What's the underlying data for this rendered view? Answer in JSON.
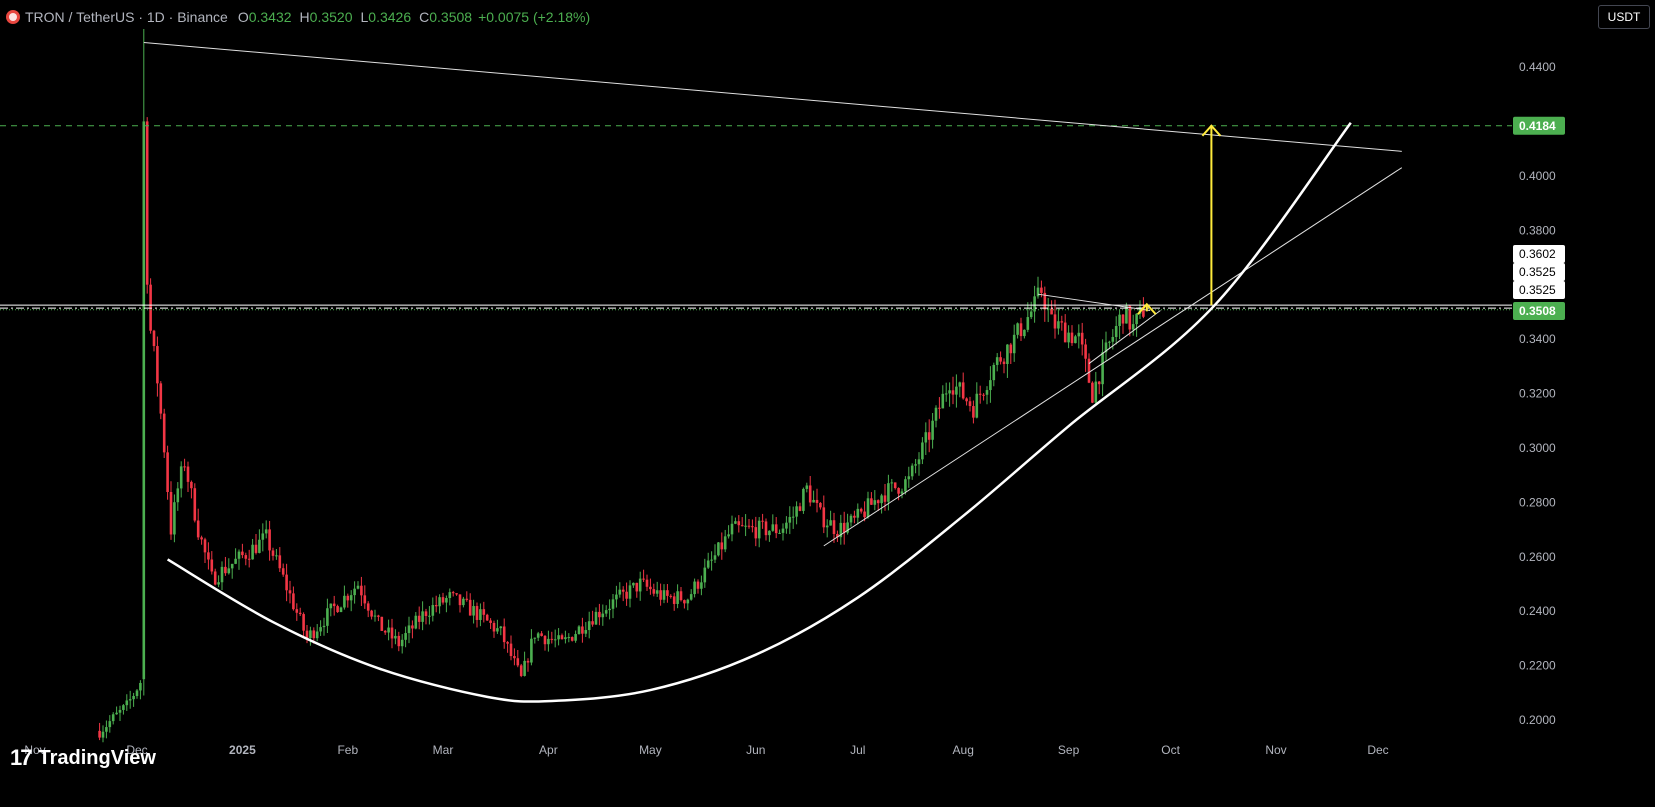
{
  "header": {
    "symbol": "TRON / TetherUS · 1D · Binance",
    "open_label": "O",
    "open": "0.3432",
    "high_label": "H",
    "high": "0.3520",
    "low_label": "L",
    "low": "0.3426",
    "close_label": "C",
    "close": "0.3508",
    "change": "+0.0075 (+2.18%)"
  },
  "currency_button": "USDT",
  "brand": {
    "logo_text": "TradingView",
    "icon": "tradingview-logo-icon"
  },
  "colors": {
    "up": "#4caf50",
    "down": "#f23645",
    "yellow": "#ffeb3b",
    "green_tag": "#4caf50"
  },
  "chart_data": {
    "type": "candlestick",
    "ylim": [
      0.192,
      0.452
    ],
    "y_ticks": [
      "0.4400",
      "0.4000",
      "0.3800",
      "0.3600",
      "0.3400",
      "0.3200",
      "0.3000",
      "0.2800",
      "0.2600",
      "0.2400",
      "0.2200",
      "0.2000"
    ],
    "x_ticks": [
      {
        "label": "Nov",
        "date": "2024-11-01"
      },
      {
        "label": "Dec",
        "date": "2024-12-01"
      },
      {
        "label": "2025",
        "date": "2025-01-01"
      },
      {
        "label": "Feb",
        "date": "2025-02-01"
      },
      {
        "label": "Mar",
        "date": "2025-03-01"
      },
      {
        "label": "Apr",
        "date": "2025-04-01"
      },
      {
        "label": "May",
        "date": "2025-05-01"
      },
      {
        "label": "Jun",
        "date": "2025-06-01"
      },
      {
        "label": "Jul",
        "date": "2025-07-01"
      },
      {
        "label": "Aug",
        "date": "2025-08-01"
      },
      {
        "label": "Sep",
        "date": "2025-09-01"
      },
      {
        "label": "Oct",
        "date": "2025-10-01"
      },
      {
        "label": "Nov",
        "date": "2025-11-01"
      },
      {
        "label": "Dec",
        "date": "2025-12-01"
      }
    ],
    "price_keypoints": [
      [
        "2024-11-20",
        0.196
      ],
      [
        "2024-11-28",
        0.205
      ],
      [
        "2024-12-02",
        0.214
      ],
      [
        "2024-12-03",
        0.42
      ],
      [
        "2024-12-04",
        0.36
      ],
      [
        "2024-12-05",
        0.343
      ],
      [
        "2024-12-07",
        0.325
      ],
      [
        "2024-12-09",
        0.3
      ],
      [
        "2024-12-11",
        0.27
      ],
      [
        "2024-12-13",
        0.285
      ],
      [
        "2024-12-15",
        0.295
      ],
      [
        "2024-12-19",
        0.27
      ],
      [
        "2024-12-23",
        0.252
      ],
      [
        "2025-01-03",
        0.262
      ],
      [
        "2025-01-08",
        0.267
      ],
      [
        "2025-01-13",
        0.252
      ],
      [
        "2025-01-20",
        0.23
      ],
      [
        "2025-01-27",
        0.24
      ],
      [
        "2025-02-04",
        0.25
      ],
      [
        "2025-02-10",
        0.235
      ],
      [
        "2025-02-16",
        0.228
      ],
      [
        "2025-02-24",
        0.24
      ],
      [
        "2025-03-03",
        0.245
      ],
      [
        "2025-03-10",
        0.24
      ],
      [
        "2025-03-18",
        0.232
      ],
      [
        "2025-03-24",
        0.215
      ],
      [
        "2025-03-28",
        0.232
      ],
      [
        "2025-04-05",
        0.228
      ],
      [
        "2025-04-14",
        0.238
      ],
      [
        "2025-04-22",
        0.245
      ],
      [
        "2025-04-28",
        0.25
      ],
      [
        "2025-05-05",
        0.245
      ],
      [
        "2025-05-12",
        0.245
      ],
      [
        "2025-05-20",
        0.26
      ],
      [
        "2025-05-25",
        0.27
      ],
      [
        "2025-06-01",
        0.27
      ],
      [
        "2025-06-08",
        0.27
      ],
      [
        "2025-06-12",
        0.275
      ],
      [
        "2025-06-16",
        0.285
      ],
      [
        "2025-06-20",
        0.275
      ],
      [
        "2025-06-25",
        0.27
      ],
      [
        "2025-06-30",
        0.273
      ],
      [
        "2025-07-08",
        0.283
      ],
      [
        "2025-07-16",
        0.288
      ],
      [
        "2025-07-22",
        0.305
      ],
      [
        "2025-07-28",
        0.325
      ],
      [
        "2025-08-04",
        0.315
      ],
      [
        "2025-08-10",
        0.33
      ],
      [
        "2025-08-16",
        0.34
      ],
      [
        "2025-08-22",
        0.352
      ],
      [
        "2025-08-24",
        0.358
      ],
      [
        "2025-08-27",
        0.346
      ],
      [
        "2025-09-04",
        0.34
      ],
      [
        "2025-09-08",
        0.32
      ],
      [
        "2025-09-12",
        0.335
      ],
      [
        "2025-09-17",
        0.35
      ],
      [
        "2025-09-20",
        0.344
      ],
      [
        "2025-09-23",
        0.3508
      ]
    ],
    "horizontal_levels": [
      {
        "price": 0.4184,
        "label": "0.4184",
        "style": "dashed",
        "color": "#4caf50"
      },
      {
        "price": 0.3602,
        "label": "0.3602",
        "style": "solid",
        "color": "#d1d4dc"
      },
      {
        "price": 0.3525,
        "label": "0.3525",
        "style": "solid",
        "color": "#ffffff"
      },
      {
        "price": 0.3525,
        "label": "0.3525",
        "style": "dash-dot",
        "color": "#ffffff"
      },
      {
        "price": 0.3508,
        "label": "0.3508",
        "style": "dotted",
        "color": "#4caf50"
      }
    ],
    "trendlines": [
      {
        "from": [
          "2024-12-03",
          0.449
        ],
        "to": [
          "2025-12-08",
          0.409
        ],
        "color": "#e0e0e0",
        "width": 1
      },
      {
        "from": [
          "2025-06-21",
          0.264
        ],
        "to": [
          "2025-12-08",
          0.403
        ],
        "color": "#e0e0e0",
        "width": 1
      },
      {
        "from": [
          "2025-08-23",
          0.3565
        ],
        "to": [
          "2025-09-25",
          0.3505
        ],
        "color": "#e0e0e0",
        "width": 1
      },
      {
        "from": [
          "2025-09-07",
          0.331
        ],
        "to": [
          "2025-09-28",
          0.3505
        ],
        "color": "#e0e0e0",
        "width": 1
      }
    ],
    "arc": {
      "points": [
        [
          "2024-12-10",
          0.259
        ],
        [
          "2025-01-10",
          0.236
        ],
        [
          "2025-02-10",
          0.219
        ],
        [
          "2025-03-14",
          0.2085
        ],
        [
          "2025-04-02",
          0.207
        ],
        [
          "2025-05-01",
          0.211
        ],
        [
          "2025-06-01",
          0.224
        ],
        [
          "2025-07-01",
          0.245
        ],
        [
          "2025-08-01",
          0.275
        ],
        [
          "2025-09-01",
          0.308
        ],
        [
          "2025-10-14",
          0.3525
        ],
        [
          "2025-11-23",
          0.4195
        ]
      ],
      "color": "#ffffff",
      "width": 2.5
    },
    "arrows": [
      {
        "date": "2025-10-13",
        "from": 0.3525,
        "to": 0.4184,
        "color": "#ffeb3b"
      },
      {
        "date": "2025-09-24",
        "from": 0.3502,
        "to": 0.3528,
        "color": "#ffeb3b"
      }
    ]
  }
}
